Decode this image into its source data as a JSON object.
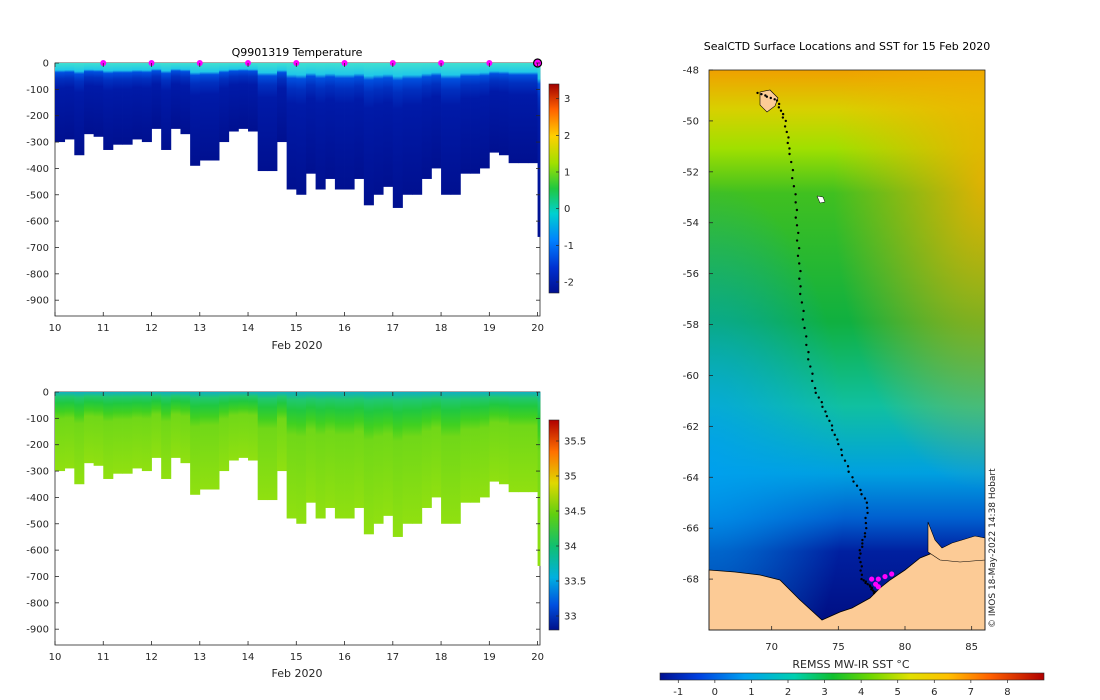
{
  "chart_data": [
    {
      "type": "heatmap",
      "name": "temperature-section",
      "title": "Q9901319  Temperature",
      "xlabel": "Feb 2020",
      "ylabel": "",
      "xlim": [
        10,
        20.05
      ],
      "ylim": [
        -960,
        0
      ],
      "x_ticks": [
        10,
        11,
        12,
        13,
        14,
        15,
        16,
        17,
        18,
        19,
        20
      ],
      "y_ticks": [
        0,
        -100,
        -200,
        -300,
        -400,
        -500,
        -600,
        -700,
        -800,
        -900
      ],
      "profile_start_days": [
        10.0,
        10.2,
        10.4,
        10.6,
        10.8,
        11.0,
        11.2,
        11.4,
        11.6,
        11.8,
        12.0,
        12.2,
        12.4,
        12.6,
        12.8,
        13.0,
        13.2,
        13.4,
        13.6,
        13.8,
        14.0,
        14.2,
        14.4,
        14.6,
        14.8,
        15.0,
        15.2,
        15.4,
        15.6,
        15.8,
        16.0,
        16.2,
        16.4,
        16.6,
        16.8,
        17.0,
        17.2,
        17.4,
        17.6,
        17.8,
        18.0,
        18.2,
        18.4,
        18.6,
        18.8,
        19.0,
        19.2,
        19.4,
        19.6,
        19.8,
        20.0
      ],
      "profile_max_depth": [
        -300,
        -290,
        -350,
        -270,
        -280,
        -330,
        -310,
        -310,
        -290,
        -300,
        -250,
        -330,
        -250,
        -270,
        -390,
        -370,
        -370,
        -300,
        -260,
        -250,
        -260,
        -410,
        -410,
        -300,
        -480,
        -500,
        -420,
        -480,
        -440,
        -480,
        -480,
        -440,
        -540,
        -500,
        -470,
        -550,
        -500,
        -500,
        -440,
        -400,
        -500,
        -500,
        -420,
        -420,
        -400,
        -340,
        -350,
        -380,
        -380,
        -380,
        -660
      ],
      "surface_marker_days": [
        11,
        12,
        13,
        14,
        15,
        16,
        17,
        18,
        19
      ],
      "latest_profile_day": 20,
      "colorbar": {
        "range": [
          -2.3,
          3.4
        ],
        "ticks": [
          3,
          2,
          1,
          0,
          -1,
          -2
        ]
      }
    },
    {
      "type": "heatmap",
      "name": "salinity-section",
      "title": "",
      "xlabel": "Feb 2020",
      "ylabel": "",
      "xlim": [
        10,
        20.05
      ],
      "ylim": [
        -960,
        0
      ],
      "x_ticks": [
        10,
        11,
        12,
        13,
        14,
        15,
        16,
        17,
        18,
        19,
        20
      ],
      "y_ticks": [
        0,
        -100,
        -200,
        -300,
        -400,
        -500,
        -600,
        -700,
        -800,
        -900
      ],
      "profile_start_days": [
        10.0,
        10.2,
        10.4,
        10.6,
        10.8,
        11.0,
        11.2,
        11.4,
        11.6,
        11.8,
        12.0,
        12.2,
        12.4,
        12.6,
        12.8,
        13.0,
        13.2,
        13.4,
        13.6,
        13.8,
        14.0,
        14.2,
        14.4,
        14.6,
        14.8,
        15.0,
        15.2,
        15.4,
        15.6,
        15.8,
        16.0,
        16.2,
        16.4,
        16.6,
        16.8,
        17.0,
        17.2,
        17.4,
        17.6,
        17.8,
        18.0,
        18.2,
        18.4,
        18.6,
        18.8,
        19.0,
        19.2,
        19.4,
        19.6,
        19.8,
        20.0
      ],
      "profile_max_depth": [
        -300,
        -290,
        -350,
        -270,
        -280,
        -330,
        -310,
        -310,
        -290,
        -300,
        -250,
        -330,
        -250,
        -270,
        -390,
        -370,
        -370,
        -300,
        -260,
        -250,
        -260,
        -410,
        -410,
        -300,
        -480,
        -500,
        -420,
        -480,
        -440,
        -480,
        -480,
        -440,
        -540,
        -500,
        -470,
        -550,
        -500,
        -500,
        -440,
        -400,
        -500,
        -500,
        -420,
        -420,
        -400,
        -340,
        -350,
        -380,
        -380,
        -380,
        -660
      ],
      "colorbar": {
        "range": [
          32.8,
          35.8
        ],
        "ticks": [
          35.5,
          35,
          34.5,
          34,
          33.5,
          33
        ]
      }
    },
    {
      "type": "heatmap",
      "name": "sst-map",
      "title": "SealCTD Surface Locations and SST for 15 Feb 2020",
      "xlabel": "",
      "ylabel": "",
      "xlim": [
        65.3,
        86.0
      ],
      "ylim": [
        -70.0,
        -48.0
      ],
      "x_ticks": [
        70,
        75,
        80,
        85
      ],
      "y_ticks": [
        -48,
        -50,
        -52,
        -54,
        -56,
        -58,
        -60,
        -62,
        -64,
        -66,
        -68
      ],
      "colorbar_label": "REMSS MW-IR SST °C",
      "colorbar": {
        "range": [
          -1.5,
          9.0
        ],
        "ticks": [
          -1,
          0,
          1,
          2,
          3,
          4,
          5,
          6,
          7,
          8
        ]
      },
      "credit": "© IMOS 18-May-2022 14:38 Hobart",
      "track_lon_lat": [
        [
          69.0,
          -48.9
        ],
        [
          70.4,
          -49.2
        ],
        [
          71.0,
          -50.0
        ],
        [
          71.4,
          -51.3
        ],
        [
          71.8,
          -53.2
        ],
        [
          72.0,
          -55.0
        ],
        [
          72.2,
          -56.8
        ],
        [
          72.6,
          -58.8
        ],
        [
          73.2,
          -60.5
        ],
        [
          74.2,
          -61.6
        ],
        [
          75.0,
          -62.7
        ],
        [
          76.0,
          -64.0
        ],
        [
          77.2,
          -65.0
        ],
        [
          77.0,
          -66.2
        ],
        [
          76.6,
          -67.0
        ],
        [
          76.8,
          -68.0
        ],
        [
          77.4,
          -68.3
        ],
        [
          77.8,
          -68.6
        ]
      ],
      "recent_lon_lat": [
        [
          77.5,
          -68.0
        ],
        [
          78.0,
          -68.0
        ],
        [
          78.5,
          -67.9
        ],
        [
          79.0,
          -67.8
        ],
        [
          78.0,
          -68.3
        ],
        [
          77.8,
          -68.2
        ]
      ]
    }
  ]
}
